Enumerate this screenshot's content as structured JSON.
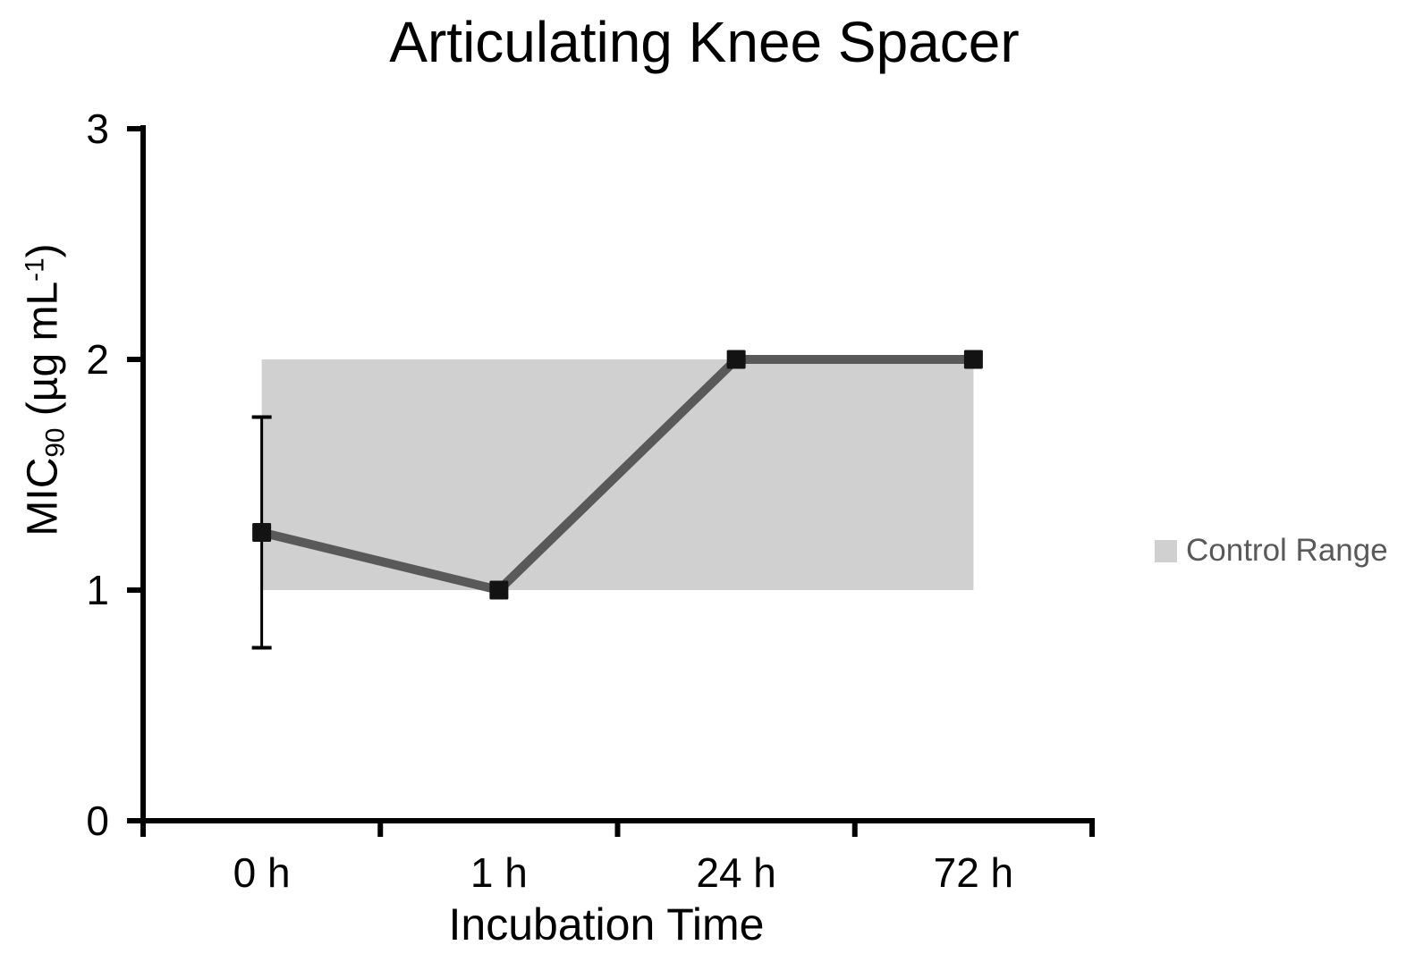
{
  "chart_data": {
    "type": "line",
    "title": "Articulating Knee Spacer",
    "xlabel": "Incubation Time",
    "ylabel": "MIC90 (µg mL-1)",
    "ylabel_parts": {
      "base": "MIC",
      "sub": "90",
      "mid": " (µg mL",
      "sup": "-1",
      "end": ")"
    },
    "categories": [
      "0 h",
      "1 h",
      "24 h",
      "72 h"
    ],
    "series": [
      {
        "name": "MIC90",
        "values": [
          1.25,
          1,
          2,
          2
        ],
        "error_bars": [
          {
            "index": 0,
            "plus": 0.5,
            "minus": 0.5
          }
        ],
        "line_color": "#595959",
        "marker": "square",
        "marker_color": "#131313"
      }
    ],
    "control_range": {
      "min": 1,
      "max": 2,
      "color": "#d0d0d0"
    },
    "ylim": [
      0,
      3
    ],
    "yticks": [
      0,
      1,
      2,
      3
    ],
    "grid": false,
    "axis_color": "#000000",
    "error_bar_color": "#000000",
    "legend": {
      "position": "right",
      "entries": [
        {
          "label": "Control Range",
          "swatch_color": "#d0d0d0"
        }
      ]
    }
  }
}
